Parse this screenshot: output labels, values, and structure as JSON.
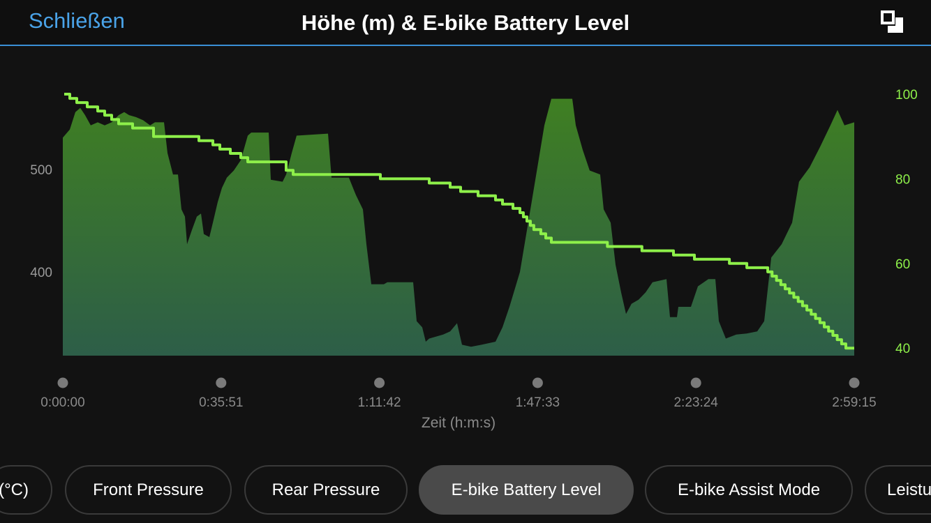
{
  "header": {
    "close_label": "Schließen",
    "title": "Höhe (m) & E-bike Battery Level",
    "expand_icon": "expand-icon",
    "accent": "#4aa3e8"
  },
  "chart_data": {
    "type": "area+line",
    "xlabel": "Zeit (h:m:s)",
    "x_unit": "seconds",
    "xlim": [
      0,
      10755
    ],
    "x_ticks": [
      {
        "value": 0,
        "label": "0:00:00"
      },
      {
        "value": 2151,
        "label": "0:35:51"
      },
      {
        "value": 4302,
        "label": "1:11:42"
      },
      {
        "value": 6453,
        "label": "1:47:33"
      },
      {
        "value": 8604,
        "label": "2:23:24"
      },
      {
        "value": 10755,
        "label": "2:59:15"
      }
    ],
    "left_axis": {
      "ticks": [
        {
          "value": 400,
          "label": "400"
        },
        {
          "value": 500,
          "label": "500"
        }
      ],
      "ylim": [
        318,
        575
      ],
      "color": "#9a9a9a"
    },
    "right_axis": {
      "ticks": [
        {
          "value": 40,
          "label": "40"
        },
        {
          "value": 60,
          "label": "60"
        },
        {
          "value": 80,
          "label": "80"
        },
        {
          "value": 100,
          "label": "100"
        }
      ],
      "ylim": [
        38,
        100
      ],
      "color": "#8ef04a"
    },
    "series": [
      {
        "type": "area",
        "axis": "left",
        "colors": [
          "#3f7f22",
          "#2d5e48"
        ],
        "points": [
          [
            0,
            531
          ],
          [
            95,
            539
          ],
          [
            171,
            556
          ],
          [
            237,
            560
          ],
          [
            303,
            553
          ],
          [
            379,
            543
          ],
          [
            474,
            546
          ],
          [
            569,
            543
          ],
          [
            664,
            546
          ],
          [
            759,
            553
          ],
          [
            835,
            556
          ],
          [
            901,
            553
          ],
          [
            996,
            551
          ],
          [
            1091,
            548
          ],
          [
            1186,
            543
          ],
          [
            1252,
            546
          ],
          [
            1375,
            546
          ],
          [
            1423,
            516
          ],
          [
            1498,
            495
          ],
          [
            1565,
            495
          ],
          [
            1612,
            461
          ],
          [
            1660,
            454
          ],
          [
            1688,
            427
          ],
          [
            1755,
            441
          ],
          [
            1821,
            454
          ],
          [
            1878,
            457
          ],
          [
            1916,
            437
          ],
          [
            1992,
            434
          ],
          [
            2039,
            448
          ],
          [
            2105,
            468
          ],
          [
            2162,
            482
          ],
          [
            2229,
            492
          ],
          [
            2324,
            499
          ],
          [
            2418,
            509
          ],
          [
            2513,
            533
          ],
          [
            2561,
            536
          ],
          [
            2798,
            536
          ],
          [
            2826,
            490
          ],
          [
            2987,
            488
          ],
          [
            3035,
            495
          ],
          [
            3111,
            516
          ],
          [
            3177,
            533
          ],
          [
            3604,
            535
          ],
          [
            3651,
            492
          ],
          [
            3888,
            492
          ],
          [
            3983,
            475
          ],
          [
            4078,
            461
          ],
          [
            4126,
            427
          ],
          [
            4192,
            388
          ],
          [
            4363,
            388
          ],
          [
            4410,
            390
          ],
          [
            4761,
            390
          ],
          [
            4808,
            352
          ],
          [
            4884,
            346
          ],
          [
            4932,
            332
          ],
          [
            4979,
            335
          ],
          [
            5169,
            339
          ],
          [
            5264,
            342
          ],
          [
            5358,
            350
          ],
          [
            5425,
            329
          ],
          [
            5548,
            327
          ],
          [
            5690,
            329
          ],
          [
            5880,
            332
          ],
          [
            5975,
            346
          ],
          [
            6070,
            366
          ],
          [
            6212,
            400
          ],
          [
            6354,
            461
          ],
          [
            6449,
            502
          ],
          [
            6544,
            543
          ],
          [
            6639,
            569
          ],
          [
            6923,
            569
          ],
          [
            6971,
            543
          ],
          [
            7066,
            519
          ],
          [
            7160,
            499
          ],
          [
            7303,
            495
          ],
          [
            7350,
            461
          ],
          [
            7445,
            448
          ],
          [
            7511,
            407
          ],
          [
            7587,
            380
          ],
          [
            7654,
            359
          ],
          [
            7729,
            369
          ],
          [
            7824,
            373
          ],
          [
            7919,
            380
          ],
          [
            8014,
            390
          ],
          [
            8204,
            393
          ],
          [
            8251,
            356
          ],
          [
            8346,
            356
          ],
          [
            8365,
            366
          ],
          [
            8536,
            366
          ],
          [
            8631,
            386
          ],
          [
            8773,
            393
          ],
          [
            8868,
            393
          ],
          [
            8915,
            352
          ],
          [
            9010,
            335
          ],
          [
            9152,
            339
          ],
          [
            9295,
            340
          ],
          [
            9437,
            342
          ],
          [
            9532,
            352
          ],
          [
            9627,
            414
          ],
          [
            9769,
            427
          ],
          [
            9911,
            448
          ],
          [
            10005,
            488
          ],
          [
            10148,
            502
          ],
          [
            10290,
            522
          ],
          [
            10432,
            543
          ],
          [
            10527,
            558
          ],
          [
            10622,
            543
          ],
          [
            10755,
            546
          ]
        ]
      },
      {
        "type": "step-line",
        "axis": "right",
        "color": "#8ef04a",
        "points": [
          [
            19,
            100
          ],
          [
            95,
            99
          ],
          [
            190,
            98
          ],
          [
            332,
            97
          ],
          [
            474,
            96
          ],
          [
            569,
            95
          ],
          [
            664,
            94
          ],
          [
            759,
            93
          ],
          [
            948,
            92
          ],
          [
            1233,
            90
          ],
          [
            1849,
            89
          ],
          [
            2039,
            88
          ],
          [
            2134,
            87
          ],
          [
            2276,
            86
          ],
          [
            2418,
            85
          ],
          [
            2513,
            84
          ],
          [
            3035,
            82
          ],
          [
            3130,
            81
          ],
          [
            4315,
            80
          ],
          [
            4979,
            79
          ],
          [
            5264,
            78
          ],
          [
            5406,
            77
          ],
          [
            5643,
            76
          ],
          [
            5880,
            75
          ],
          [
            5975,
            74
          ],
          [
            6117,
            73
          ],
          [
            6212,
            72
          ],
          [
            6259,
            71
          ],
          [
            6307,
            70
          ],
          [
            6354,
            69
          ],
          [
            6401,
            68
          ],
          [
            6496,
            67
          ],
          [
            6563,
            66
          ],
          [
            6639,
            65
          ],
          [
            7400,
            64
          ],
          [
            7870,
            63
          ],
          [
            8299,
            62
          ],
          [
            8583,
            61
          ],
          [
            9058,
            60
          ],
          [
            9295,
            59
          ],
          [
            9580,
            58
          ],
          [
            9639,
            57
          ],
          [
            9698,
            56
          ],
          [
            9757,
            55
          ],
          [
            9816,
            54
          ],
          [
            9875,
            53
          ],
          [
            9934,
            52
          ],
          [
            9993,
            51
          ],
          [
            10052,
            50
          ],
          [
            10111,
            49
          ],
          [
            10170,
            48
          ],
          [
            10229,
            47
          ],
          [
            10288,
            46
          ],
          [
            10347,
            45
          ],
          [
            10406,
            44
          ],
          [
            10465,
            43
          ],
          [
            10524,
            42
          ],
          [
            10583,
            41
          ],
          [
            10641,
            40
          ],
          [
            10755,
            40
          ]
        ]
      }
    ]
  },
  "tabs": [
    {
      "label": "(°C)",
      "selected": false
    },
    {
      "label": "Front Pressure",
      "selected": false
    },
    {
      "label": "Rear Pressure",
      "selected": false
    },
    {
      "label": "E-bike Battery Level",
      "selected": true
    },
    {
      "label": "E-bike Assist Mode",
      "selected": false
    },
    {
      "label": "Leistu",
      "selected": false
    }
  ]
}
